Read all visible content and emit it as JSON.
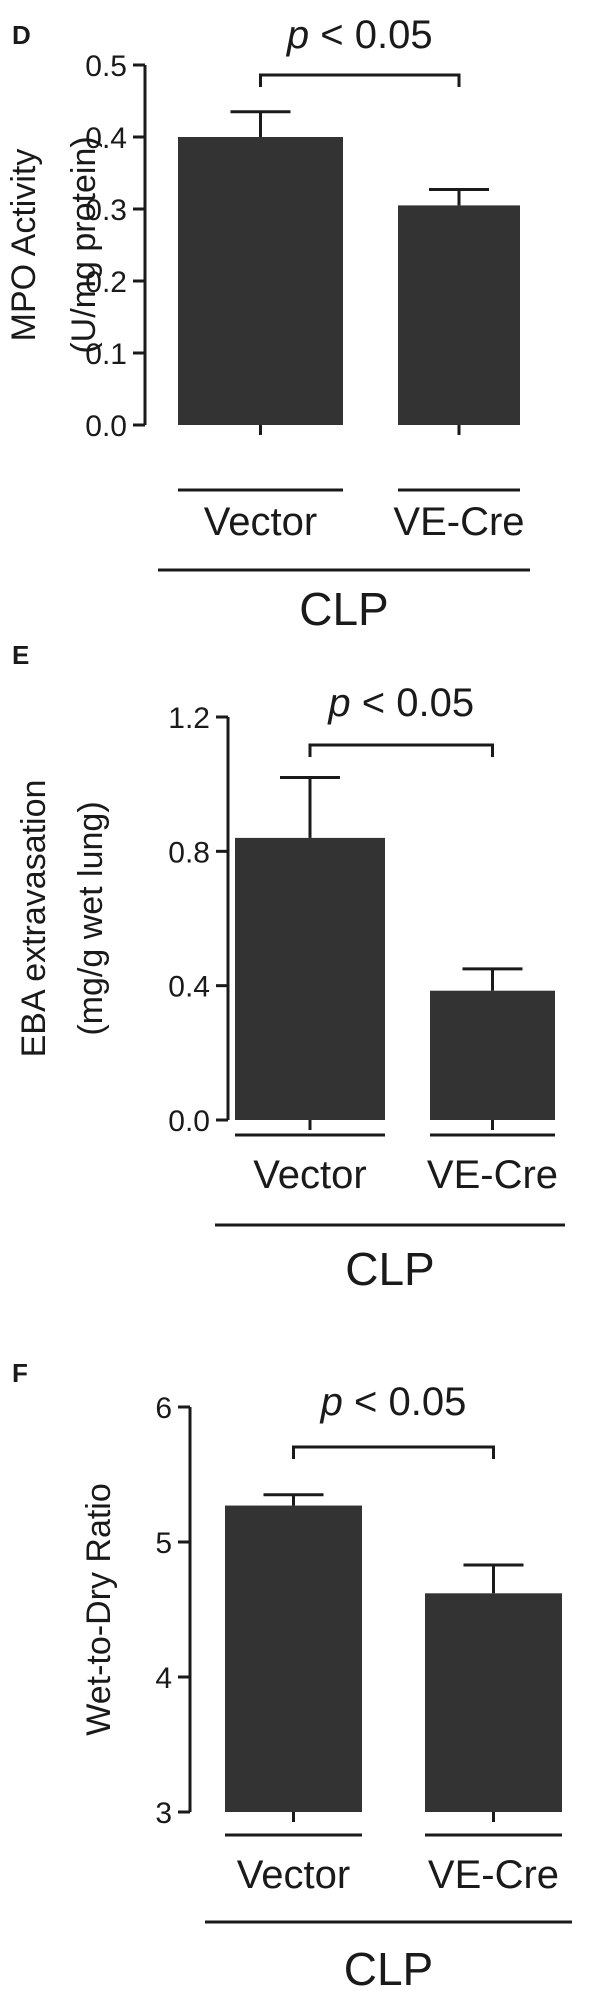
{
  "chart_data": [
    {
      "type": "bar",
      "panel_label": "D",
      "ylabel_lines": [
        "MPO Activity",
        "(U/mg protein)"
      ],
      "categories": [
        "Vector",
        "VE-Cre"
      ],
      "values": [
        0.4,
        0.305
      ],
      "errors": [
        0.035,
        0.022
      ],
      "ylim": [
        0,
        0.5
      ],
      "yticks": [
        0.0,
        0.1,
        0.2,
        0.3,
        0.4,
        0.5
      ],
      "ytick_labels": [
        "0.0",
        "0.1",
        "0.2",
        "0.3",
        "0.4",
        "0.5"
      ],
      "group_label": "CLP",
      "annotation": {
        "p_symbol": "p",
        "text": " < 0.05"
      },
      "bar_color": "#333333"
    },
    {
      "type": "bar",
      "panel_label": "E",
      "ylabel_lines": [
        "EBA extravasation",
        "(mg/g wet lung)"
      ],
      "categories": [
        "Vector",
        "VE-Cre"
      ],
      "values": [
        0.84,
        0.385
      ],
      "errors": [
        0.18,
        0.065
      ],
      "ylim": [
        0,
        1.2
      ],
      "yticks": [
        0.0,
        0.4,
        0.8,
        1.2
      ],
      "ytick_labels": [
        "0.0",
        "0.4",
        "0.8",
        "1.2"
      ],
      "group_label": "CLP",
      "annotation": {
        "p_symbol": "p",
        "text": " < 0.05"
      },
      "bar_color": "#333333"
    },
    {
      "type": "bar",
      "panel_label": "F",
      "ylabel_lines": [
        "Wet-to-Dry Ratio"
      ],
      "categories": [
        "Vector",
        "VE-Cre"
      ],
      "values": [
        5.27,
        4.62
      ],
      "errors": [
        0.08,
        0.21
      ],
      "ylim": [
        3,
        6
      ],
      "yticks": [
        3,
        4,
        5,
        6
      ],
      "ytick_labels": [
        "3",
        "4",
        "5",
        "6"
      ],
      "group_label": "CLP",
      "annotation": {
        "p_symbol": "p",
        "text": " < 0.05"
      },
      "bar_color": "#333333"
    }
  ]
}
